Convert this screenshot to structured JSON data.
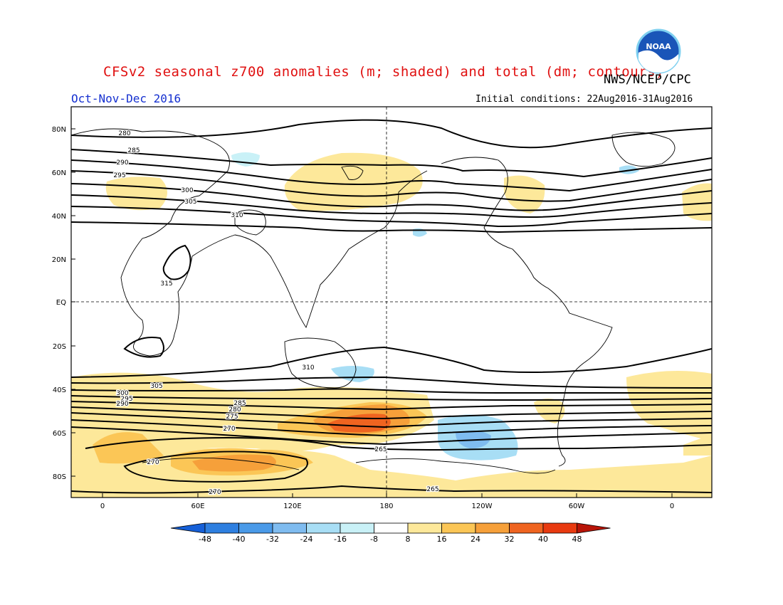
{
  "title": "CFSv2 seasonal z700 anomalies (m; shaded) and total (dm; contours)",
  "agency": "NWS/NCEP/CPC",
  "logo_text": "NOAA",
  "period": "Oct-Nov-Dec 2016",
  "initial_conditions": "Initial conditions: 22Aug2016-31Aug2016",
  "map": {
    "lat_labels": [
      "80N",
      "60N",
      "40N",
      "20N",
      "EQ",
      "20S",
      "40S",
      "60S",
      "80S"
    ],
    "lon_labels": [
      "0",
      "60E",
      "120E",
      "180",
      "120W",
      "60W",
      "0"
    ],
    "contour_labels": [
      "280",
      "285",
      "290",
      "295",
      "300",
      "305",
      "310",
      "315",
      "310",
      "305",
      "300",
      "295",
      "290",
      "285",
      "280",
      "275",
      "270",
      "265",
      "270",
      "265",
      "270"
    ]
  },
  "colorbar": {
    "ticks": [
      "-48",
      "-40",
      "-32",
      "-24",
      "-16",
      "-8",
      "8",
      "16",
      "24",
      "32",
      "40",
      "48"
    ],
    "colors": [
      "#1660d8",
      "#2e7fe0",
      "#4a9ae8",
      "#7fbcf0",
      "#a8def5",
      "#c9f1f7",
      "#ffffff",
      "#fde89a",
      "#fbc656",
      "#f6a03a",
      "#ef6420",
      "#e83a10",
      "#b81408"
    ]
  }
}
